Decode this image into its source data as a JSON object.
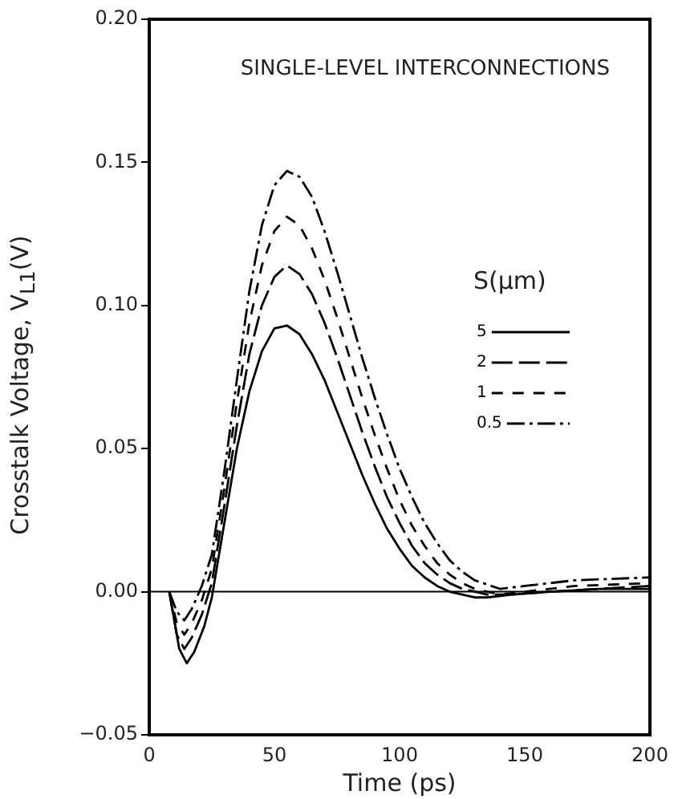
{
  "chart_data": {
    "type": "line",
    "xlabel": "Time (ps)",
    "ylabel": "Crosstalk Voltage, V$_{L1}$(V)",
    "legend_title": "S(μm)",
    "legend": "right",
    "grid": false,
    "marker": "none",
    "annotations": [
      "SINGLE-LEVEL INTERCONNECTIONS"
    ],
    "xlim": [
      0,
      200
    ],
    "xticks": [
      0,
      50,
      100,
      150,
      200
    ],
    "ylim": [
      -0.05,
      0.2
    ],
    "yticks": [
      {
        "value": -0.05,
        "label": "−0.05"
      },
      {
        "value": 0,
        "label": "0.00"
      },
      {
        "value": 0.05,
        "label": "0.05"
      },
      {
        "value": 0.1,
        "label": "0.10"
      },
      {
        "value": 0.15,
        "label": "0.15"
      },
      {
        "value": 0.2,
        "label": "0.20"
      }
    ],
    "ref_lines": [
      {
        "axis": "y",
        "value": 0,
        "color": "#000000"
      }
    ],
    "series": [
      {
        "name": "5",
        "color": "#000000",
        "line_style": "solid",
        "x": [
          8,
          12,
          15,
          18,
          22,
          25,
          30,
          35,
          40,
          45,
          50,
          55,
          60,
          65,
          70,
          75,
          80,
          85,
          90,
          95,
          100,
          105,
          110,
          115,
          120,
          130,
          135,
          145,
          160,
          180,
          200
        ],
        "values": [
          0,
          -0.02,
          -0.025,
          -0.021,
          -0.012,
          -0.002,
          0.024,
          0.05,
          0.07,
          0.084,
          0.092,
          0.093,
          0.09,
          0.083,
          0.074,
          0.063,
          0.052,
          0.041,
          0.031,
          0.022,
          0.015,
          0.009,
          0.005,
          0.002,
          0,
          -0.002,
          -0.002,
          -0.001,
          0,
          0.001,
          0.001
        ]
      },
      {
        "name": "2",
        "color": "#000000",
        "line_style": "longdash",
        "x": [
          8,
          11,
          14,
          17,
          21,
          25,
          30,
          35,
          40,
          45,
          50,
          55,
          60,
          65,
          70,
          75,
          80,
          85,
          90,
          95,
          100,
          105,
          110,
          115,
          120,
          125,
          135,
          145,
          160,
          180,
          200
        ],
        "values": [
          0,
          -0.015,
          -0.02,
          -0.016,
          -0.008,
          0.003,
          0.03,
          0.058,
          0.083,
          0.1,
          0.11,
          0.114,
          0.111,
          0.104,
          0.094,
          0.082,
          0.069,
          0.056,
          0.044,
          0.033,
          0.024,
          0.016,
          0.01,
          0.006,
          0.003,
          0.001,
          -0.001,
          -0.001,
          0,
          0.001,
          0.002
        ]
      },
      {
        "name": "1",
        "color": "#000000",
        "line_style": "dashed",
        "x": [
          8,
          11,
          14,
          17,
          21,
          25,
          30,
          35,
          40,
          45,
          50,
          55,
          60,
          65,
          70,
          75,
          80,
          85,
          90,
          95,
          100,
          105,
          110,
          115,
          120,
          125,
          130,
          140,
          150,
          170,
          200
        ],
        "values": [
          0,
          -0.011,
          -0.015,
          -0.011,
          -0.003,
          0.008,
          0.036,
          0.066,
          0.094,
          0.114,
          0.126,
          0.131,
          0.128,
          0.12,
          0.109,
          0.096,
          0.082,
          0.068,
          0.055,
          0.043,
          0.032,
          0.023,
          0.016,
          0.01,
          0.006,
          0.003,
          0.001,
          -0.001,
          0,
          0.002,
          0.003
        ]
      },
      {
        "name": "0.5",
        "color": "#000000",
        "line_style": "dashdot",
        "x": [
          8,
          11,
          14,
          17,
          21,
          25,
          30,
          35,
          40,
          45,
          50,
          55,
          60,
          65,
          70,
          75,
          80,
          85,
          90,
          95,
          100,
          105,
          110,
          115,
          120,
          125,
          130,
          140,
          150,
          170,
          200
        ],
        "values": [
          0,
          -0.007,
          -0.01,
          -0.006,
          0.002,
          0.013,
          0.042,
          0.074,
          0.105,
          0.128,
          0.142,
          0.147,
          0.145,
          0.138,
          0.126,
          0.112,
          0.097,
          0.082,
          0.068,
          0.055,
          0.043,
          0.033,
          0.024,
          0.017,
          0.011,
          0.007,
          0.004,
          0.001,
          0.002,
          0.004,
          0.005
        ]
      }
    ]
  }
}
